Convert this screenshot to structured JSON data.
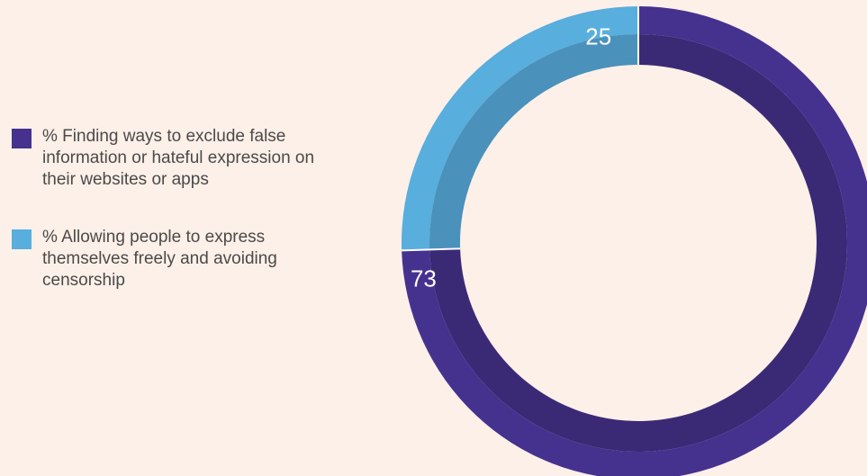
{
  "chart_data": {
    "type": "pie",
    "style": "donut",
    "title": "",
    "categories": [
      "% Finding ways to exclude false information or hateful expression on their websites or apps",
      "% Allowing people to express themselves freely and avoiding censorship"
    ],
    "values": [
      73,
      25
    ],
    "data_labels": [
      "73",
      "25"
    ],
    "colors": [
      "#45328f",
      "#58aedd"
    ],
    "inner_ring_colors": [
      "#3a2a76",
      "#4a91bb"
    ],
    "legend_position": "left"
  }
}
